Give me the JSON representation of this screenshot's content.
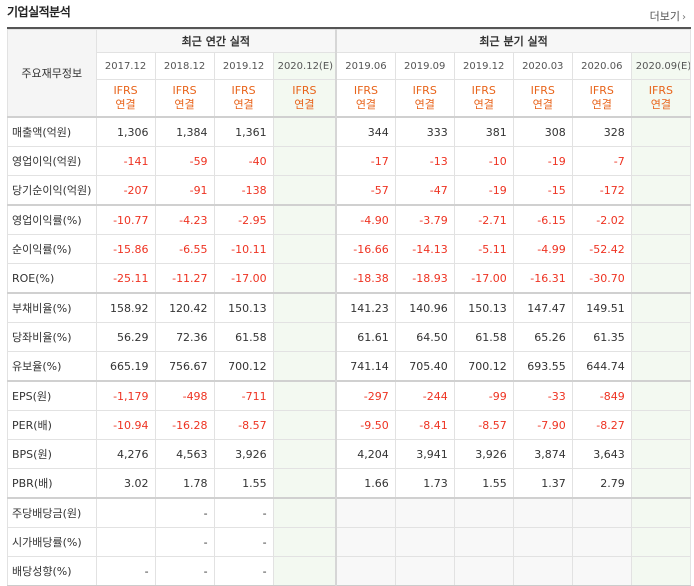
{
  "header": {
    "title": "기업실적분석",
    "more": "더보기"
  },
  "table": {
    "row_header": "주요재무정보",
    "annual_label": "최근 연간 실적",
    "quarter_label": "최근 분기 실적",
    "periods": [
      "2017.12",
      "2018.12",
      "2019.12",
      "2020.12(E)",
      "2019.06",
      "2019.09",
      "2019.12",
      "2020.03",
      "2020.06",
      "2020.09(E)"
    ],
    "basis_line1": "IFRS",
    "basis_line2": "연결",
    "rows": [
      {
        "label": "매출액(억원)",
        "values": [
          "1,306",
          "1,384",
          "1,361",
          "",
          "344",
          "333",
          "381",
          "308",
          "328",
          ""
        ]
      },
      {
        "label": "영업이익(억원)",
        "values": [
          "-141",
          "-59",
          "-40",
          "",
          "-17",
          "-13",
          "-10",
          "-19",
          "-7",
          ""
        ]
      },
      {
        "label": "당기순이익(억원)",
        "values": [
          "-207",
          "-91",
          "-138",
          "",
          "-57",
          "-47",
          "-19",
          "-15",
          "-172",
          ""
        ]
      },
      {
        "label": "영업이익률(%)",
        "values": [
          "-10.77",
          "-4.23",
          "-2.95",
          "",
          "-4.90",
          "-3.79",
          "-2.71",
          "-6.15",
          "-2.02",
          ""
        ]
      },
      {
        "label": "순이익률(%)",
        "values": [
          "-15.86",
          "-6.55",
          "-10.11",
          "",
          "-16.66",
          "-14.13",
          "-5.11",
          "-4.99",
          "-52.42",
          ""
        ]
      },
      {
        "label": "ROE(%)",
        "values": [
          "-25.11",
          "-11.27",
          "-17.00",
          "",
          "-18.38",
          "-18.93",
          "-17.00",
          "-16.31",
          "-30.70",
          ""
        ]
      },
      {
        "label": "부채비율(%)",
        "values": [
          "158.92",
          "120.42",
          "150.13",
          "",
          "141.23",
          "140.96",
          "150.13",
          "147.47",
          "149.51",
          ""
        ]
      },
      {
        "label": "당좌비율(%)",
        "values": [
          "56.29",
          "72.36",
          "61.58",
          "",
          "61.61",
          "64.50",
          "61.58",
          "65.26",
          "61.35",
          ""
        ]
      },
      {
        "label": "유보율(%)",
        "values": [
          "665.19",
          "756.67",
          "700.12",
          "",
          "741.14",
          "705.40",
          "700.12",
          "693.55",
          "644.74",
          ""
        ]
      },
      {
        "label": "EPS(원)",
        "values": [
          "-1,179",
          "-498",
          "-711",
          "",
          "-297",
          "-244",
          "-99",
          "-33",
          "-849",
          ""
        ]
      },
      {
        "label": "PER(배)",
        "values": [
          "-10.94",
          "-16.28",
          "-8.57",
          "",
          "-9.50",
          "-8.41",
          "-8.57",
          "-7.90",
          "-8.27",
          ""
        ]
      },
      {
        "label": "BPS(원)",
        "values": [
          "4,276",
          "4,563",
          "3,926",
          "",
          "4,204",
          "3,941",
          "3,926",
          "3,874",
          "3,643",
          ""
        ]
      },
      {
        "label": "PBR(배)",
        "values": [
          "3.02",
          "1.78",
          "1.55",
          "",
          "1.66",
          "1.73",
          "1.55",
          "1.37",
          "2.79",
          ""
        ]
      },
      {
        "label": "주당배당금(원)",
        "values": [
          "",
          "-",
          "-",
          "",
          "",
          "",
          "",
          "",
          "",
          ""
        ]
      },
      {
        "label": "시가배당률(%)",
        "values": [
          "",
          "-",
          "-",
          "",
          "",
          "",
          "",
          "",
          "",
          ""
        ]
      },
      {
        "label": "배당성향(%)",
        "values": [
          "-",
          "-",
          "-",
          "",
          "",
          "",
          "",
          "",
          "",
          ""
        ]
      }
    ]
  },
  "colors": {
    "negative": "#ee3322",
    "ifrs": "#e8641b",
    "estimate_bg": "#f3f9f1"
  }
}
